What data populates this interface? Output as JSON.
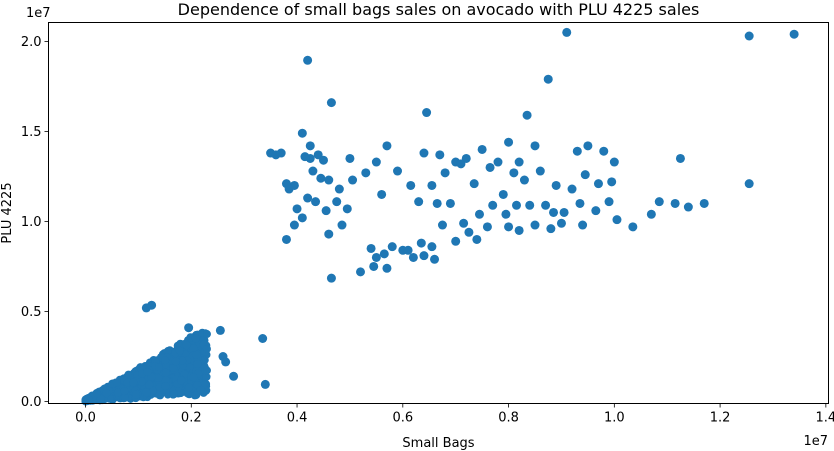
{
  "chart_data": {
    "type": "scatter",
    "title": "Dependence of small bags sales on avocado with PLU 4225 sales",
    "xlabel": "Small Bags",
    "ylabel": "PLU 4225",
    "x_offset_text": "1e7",
    "y_offset_text": "1e7",
    "xlim": [
      -700000,
      14050000
    ],
    "ylim": [
      -110000,
      21050000
    ],
    "x_ticks": [
      0,
      2000000,
      4000000,
      6000000,
      8000000,
      10000000,
      12000000,
      14000000
    ],
    "x_tick_labels": [
      "0.0",
      "0.2",
      "0.4",
      "0.6",
      "0.8",
      "1.0",
      "1.2",
      "1.4"
    ],
    "y_ticks": [
      0,
      5000000,
      10000000,
      15000000,
      20000000
    ],
    "y_tick_labels": [
      "0.0",
      "0.5",
      "1.0",
      "1.5",
      "2.0"
    ],
    "grid": false,
    "marker_color": "#1f77b4",
    "series": [
      {
        "x": [
          4200000,
          9100000,
          12550000,
          13400000,
          4650000,
          8750000,
          6450000,
          8350000,
          4100000,
          4250000,
          4400000,
          3500000,
          3600000,
          3700000,
          4250000,
          4500000,
          5000000,
          5700000,
          6400000,
          6700000,
          7000000,
          7200000,
          7500000,
          7800000,
          8000000,
          8200000,
          8500000,
          9300000,
          9500000,
          9800000,
          10000000,
          11250000,
          3800000,
          3950000,
          4150000,
          4300000,
          4450000,
          4600000,
          4800000,
          5050000,
          5300000,
          5500000,
          5900000,
          6150000,
          6550000,
          6800000,
          7100000,
          7350000,
          7650000,
          7900000,
          8100000,
          8300000,
          8600000,
          8900000,
          9200000,
          9450000,
          9700000,
          9950000,
          3850000,
          4000000,
          4200000,
          4350000,
          4550000,
          4750000,
          4950000,
          5600000,
          6300000,
          6650000,
          6900000,
          7150000,
          7450000,
          7700000,
          7950000,
          8150000,
          8400000,
          8700000,
          8850000,
          9050000,
          9350000,
          9650000,
          9900000,
          10050000,
          10350000,
          10700000,
          10850000,
          11150000,
          11400000,
          11700000,
          12550000,
          3950000,
          4100000,
          4600000,
          4850000,
          5400000,
          5500000,
          5650000,
          5800000,
          6000000,
          6200000,
          6400000,
          6550000,
          6750000,
          7000000,
          7250000,
          7400000,
          7600000,
          8000000,
          8200000,
          8500000,
          8800000,
          9000000,
          9400000,
          5200000,
          5450000,
          5700000,
          6100000,
          6350000,
          6600000,
          3800000,
          4650000,
          3350000,
          3400000,
          2550000,
          2800000,
          2600000,
          2650000,
          1950000,
          1250000,
          1150000
        ],
        "y": [
          18950000,
          20500000,
          20300000,
          20400000,
          16600000,
          17900000,
          16050000,
          15900000,
          14900000,
          14200000,
          13700000,
          13800000,
          13700000,
          13800000,
          13500000,
          13400000,
          13500000,
          14200000,
          13800000,
          13700000,
          13300000,
          13500000,
          14000000,
          13300000,
          14400000,
          13300000,
          14200000,
          13900000,
          14200000,
          13900000,
          13300000,
          13500000,
          12100000,
          12000000,
          13600000,
          12800000,
          12400000,
          12300000,
          11800000,
          12300000,
          12700000,
          13300000,
          12800000,
          12000000,
          12000000,
          12700000,
          13200000,
          12100000,
          13000000,
          11500000,
          12700000,
          12300000,
          12800000,
          12000000,
          11800000,
          12600000,
          12100000,
          12200000,
          11800000,
          10700000,
          11300000,
          11100000,
          10600000,
          11100000,
          10700000,
          11500000,
          11100000,
          11000000,
          11000000,
          9900000,
          10400000,
          10900000,
          10400000,
          10900000,
          10900000,
          10900000,
          10500000,
          10500000,
          11000000,
          10600000,
          11100000,
          10100000,
          9700000,
          10400000,
          11100000,
          11000000,
          10800000,
          11000000,
          12100000,
          9800000,
          10200000,
          9300000,
          9800000,
          8500000,
          8000000,
          8200000,
          8600000,
          8400000,
          8000000,
          8100000,
          8600000,
          9800000,
          8900000,
          9400000,
          9000000,
          9700000,
          9700000,
          9500000,
          9800000,
          9600000,
          9900000,
          9800000,
          7200000,
          7500000,
          7400000,
          8400000,
          8800000,
          7900000,
          9000000,
          6850000,
          3500000,
          950000,
          3950000,
          1400000,
          2500000,
          2200000,
          4100000,
          5350000,
          5200000
        ]
      }
    ]
  }
}
